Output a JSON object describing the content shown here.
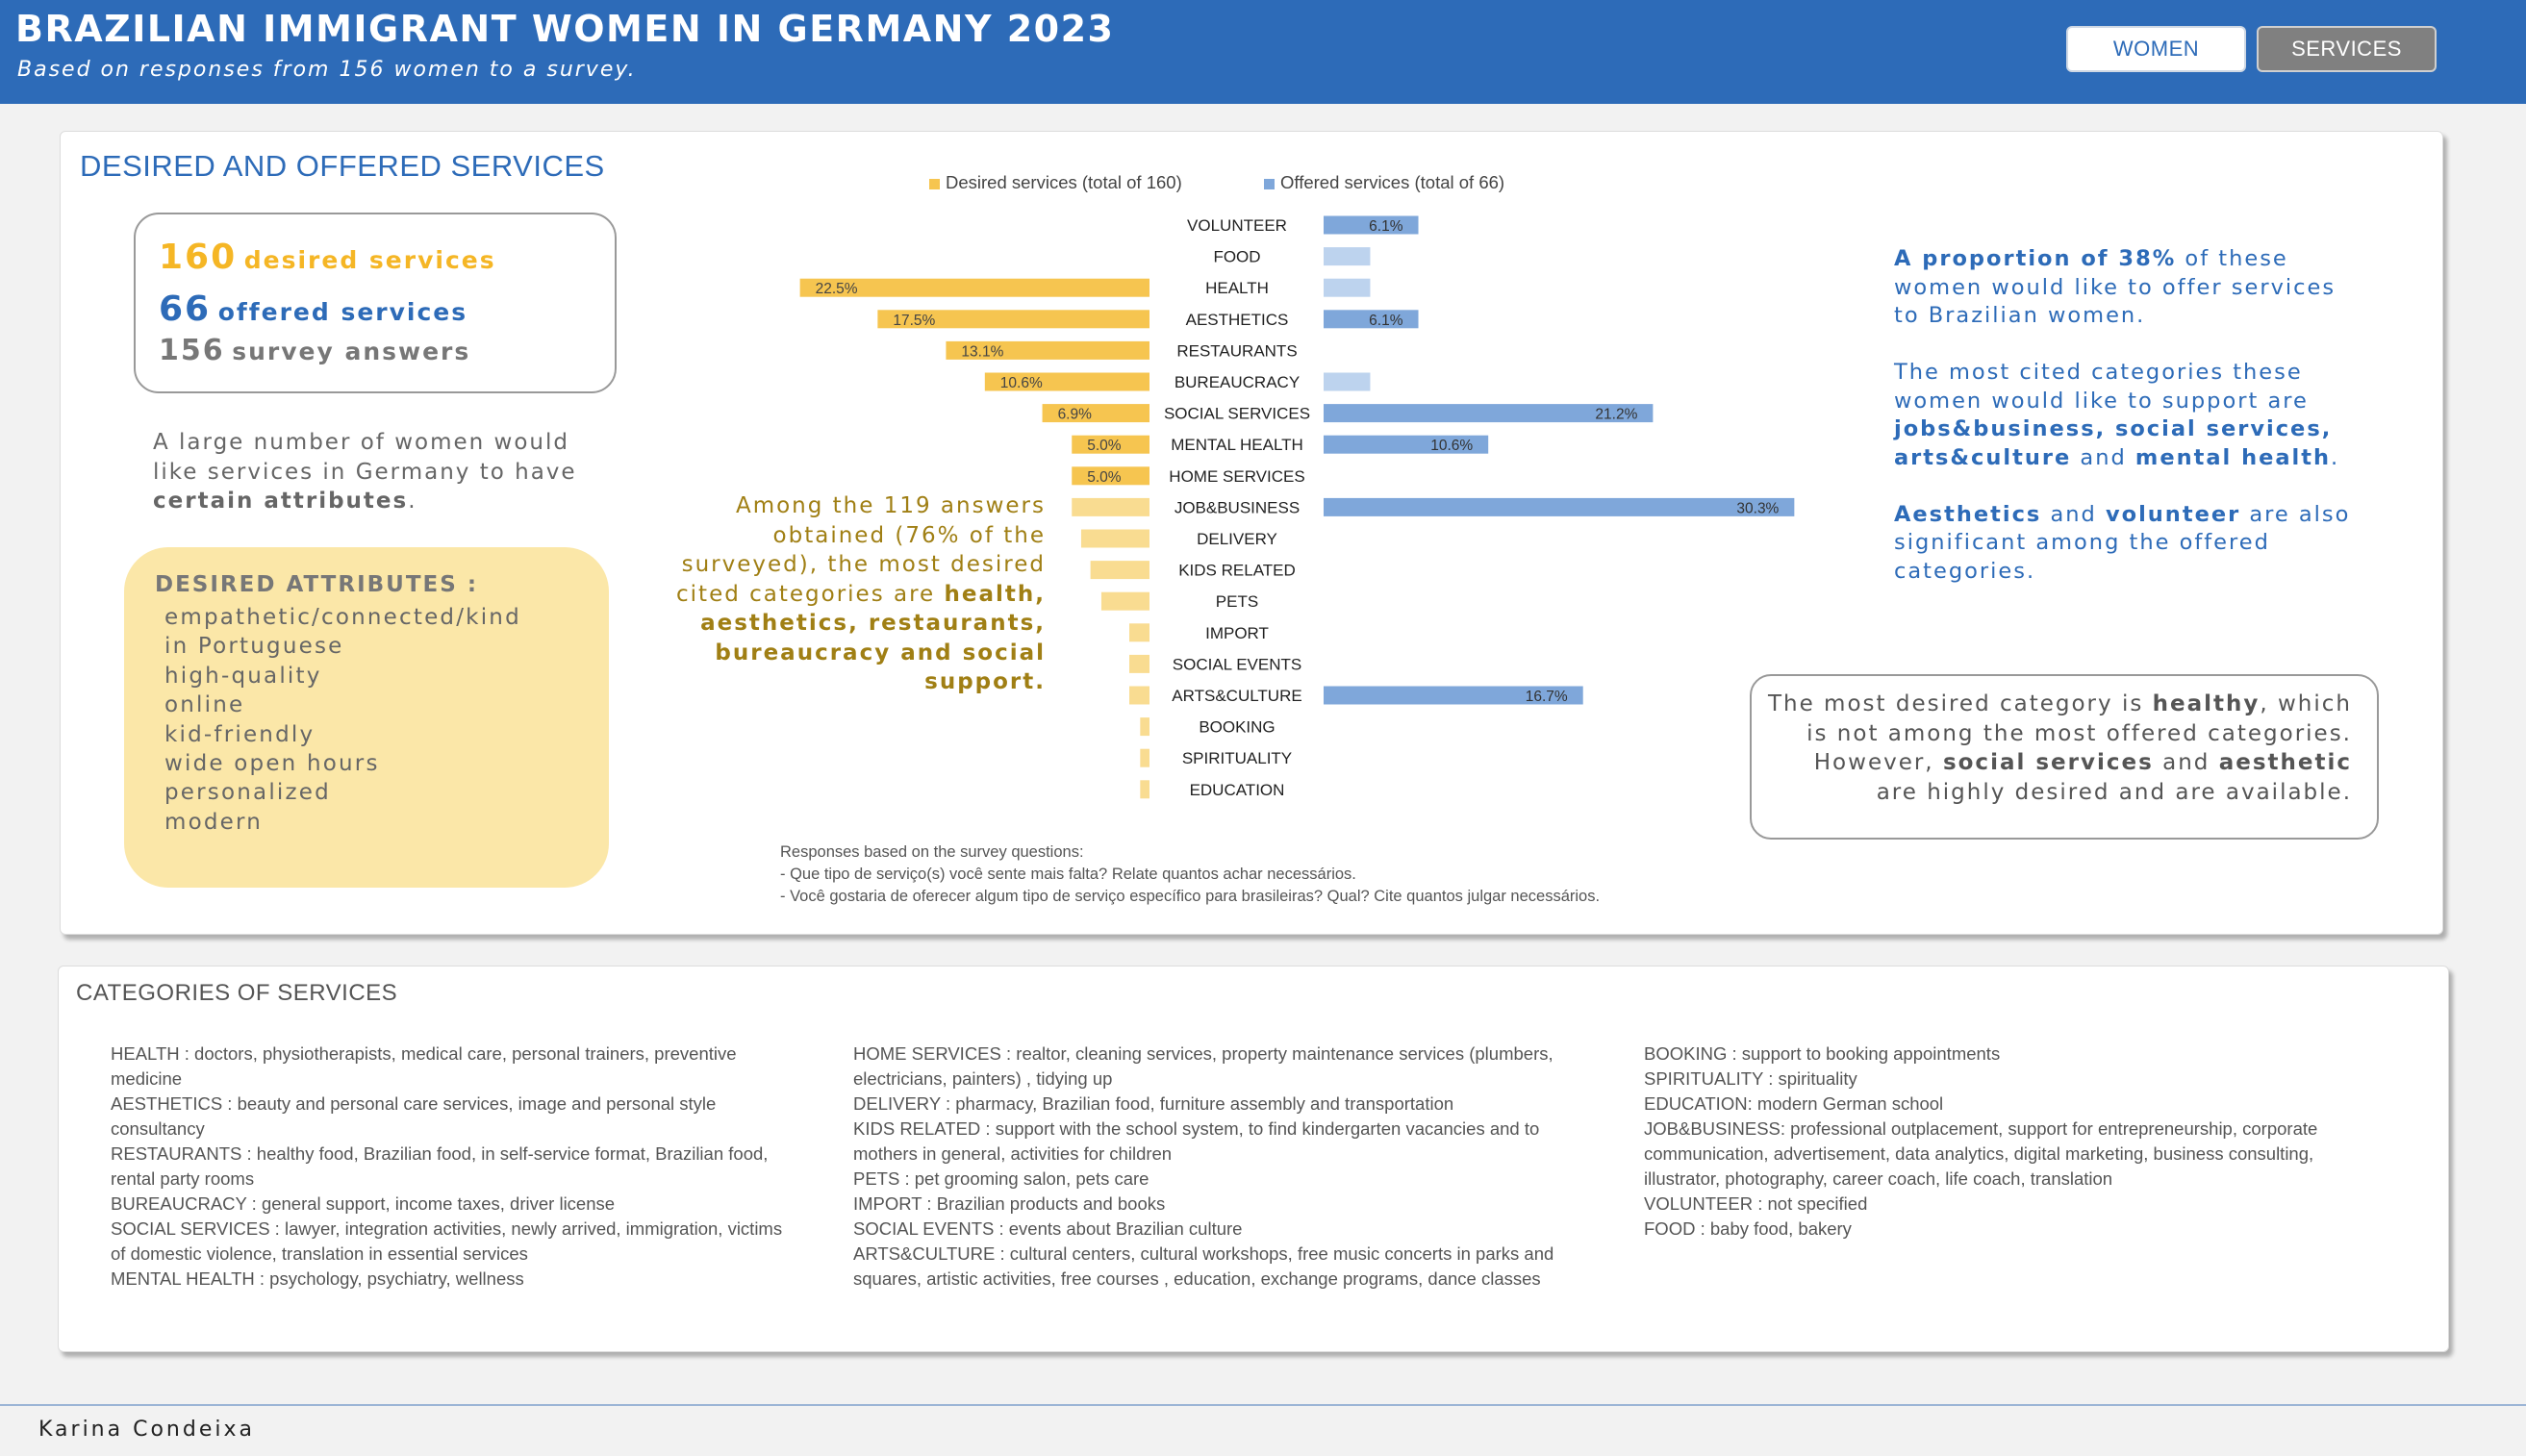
{
  "header": {
    "title": "BRAZILIAN IMMIGRANT WOMEN IN GERMANY 2023",
    "subtitle": "Based on responses from 156 women to a survey.",
    "tabs": [
      {
        "label": "WOMEN",
        "active": false
      },
      {
        "label": "SERVICES",
        "active": true
      }
    ]
  },
  "colors": {
    "header_blue": "#2d6bb8",
    "desired_dark": "#f6c550",
    "desired_light": "#f9dc91",
    "offered_dark": "#7fa7da",
    "offered_light": "#bdd3ee"
  },
  "main": {
    "section_title": "DESIRED AND OFFERED SERVICES",
    "stats": [
      {
        "number": "160",
        "label": "desired services",
        "color": "yellow"
      },
      {
        "number": "66",
        "label": "offered services",
        "color": "blue"
      },
      {
        "number": "156",
        "label": "survey answers",
        "color": "gray"
      }
    ],
    "intro_text": "A large number of women would like services in Germany to have",
    "intro_bold": "certain attributes",
    "intro_end": ".",
    "attributes_title": "DESIRED ATTRIBUTES :",
    "attributes": [
      "empathetic/connected/kind",
      "in Portuguese",
      "high-quality",
      "online",
      "kid-friendly",
      "wide open hours",
      "personalized",
      "modern"
    ],
    "mid_note": {
      "text": "Among the 119 answers obtained (76% of the surveyed), the most desired cited categories are",
      "bold": "health, aesthetics, restaurants, bureaucracy and social support."
    },
    "right_note": {
      "p1_bold": "A proportion of 38%",
      "p1_rest": " of these women would like to offer services to Brazilian women.",
      "p2_text": "The most cited categories these women would like to support are ",
      "p2_bold1": "jobs&business, social services, arts&culture",
      "p2_and": " and ",
      "p2_bold2": "mental health",
      "p2_end": ".",
      "p3_bold1": "Aesthetics",
      "p3_and": " and ",
      "p3_bold2": "volunteer",
      "p3_rest": " are also significant among the offered categories."
    },
    "conclusion": {
      "t1": "The most desired category is ",
      "b1": "healthy",
      "t2": ", which is not among the most offered categories. However, ",
      "b2": "social services",
      "t3": " and ",
      "b3": "aesthetic",
      "t4": " are highly desired and are available."
    },
    "survey_note": [
      "Responses based on the survey questions:",
      "- Que tipo de serviço(s) você sente mais falta? Relate quantos achar necessários.",
      "- Você gostaria de oferecer algum tipo de serviço específico para brasileiras? Qual? Cite quantos julgar necessários."
    ]
  },
  "chart_data": {
    "type": "bar",
    "orientation": "horizontal-butterfly",
    "legend": [
      "Desired services (total of 160)",
      "Offered services (total of 66)"
    ],
    "legend_position": "top",
    "categories": [
      "VOLUNTEER",
      "FOOD",
      "HEALTH",
      "AESTHETICS",
      "RESTAURANTS",
      "BUREAUCRACY",
      "SOCIAL SERVICES",
      "MENTAL HEALTH",
      "HOME SERVICES",
      "JOB&BUSINESS",
      "DELIVERY",
      "KIDS RELATED",
      "PETS",
      "IMPORT",
      "SOCIAL EVENTS",
      "ARTS&CULTURE",
      "BOOKING",
      "SPIRITUALITY",
      "EDUCATION"
    ],
    "series": [
      {
        "name": "Desired services (total of 160)",
        "values": [
          0,
          0,
          22.5,
          17.5,
          13.1,
          10.6,
          6.9,
          5.0,
          5.0,
          5.0,
          4.4,
          3.8,
          3.1,
          1.3,
          1.3,
          1.3,
          0.6,
          0.6,
          0.6
        ],
        "labels": [
          "",
          "",
          "22.5%",
          "17.5%",
          "13.1%",
          "10.6%",
          "6.9%",
          "5.0%",
          "5.0%",
          "",
          "",
          "",
          "",
          "",
          "",
          "",
          "",
          "",
          ""
        ]
      },
      {
        "name": "Offered services (total of 66)",
        "values": [
          6.1,
          3.0,
          3.0,
          6.1,
          0,
          3.0,
          21.2,
          10.6,
          0,
          30.3,
          0,
          0,
          0,
          0,
          0,
          16.7,
          0,
          0,
          0
        ],
        "labels": [
          "6.1%",
          "",
          "",
          "6.1%",
          "",
          "",
          "21.2%",
          "10.6%",
          "",
          "30.3%",
          "",
          "",
          "",
          "",
          "",
          "16.7%",
          "",
          "",
          ""
        ]
      }
    ],
    "unit": "%"
  },
  "categories_section": {
    "title": "CATEGORIES OF SERVICES",
    "columns": [
      [
        "HEALTH : doctors, physiotherapists, medical care, personal trainers, preventive medicine",
        "AESTHETICS : beauty and personal care services, image and personal style consultancy",
        "RESTAURANTS : healthy food, Brazilian food, in self-service format, Brazilian food, rental party rooms",
        "BUREAUCRACY : general support, income taxes, driver license",
        "SOCIAL  SERVICES : lawyer, integration activities,  newly arrived, immigration, victims of domestic violence, translation in essential services",
        "MENTAL  HEALTH : psychology, psychiatry, wellness"
      ],
      [
        "HOME SERVICES : realtor, cleaning services, property maintenance services (plumbers, electricians, painters) , tidying up",
        "DELIVERY : pharmacy, Brazilian food, furniture assembly and transportation",
        "KIDS RELATED  : support with the school system, to find kindergarten vacancies and to mothers in general, activities for children",
        "PETS : pet grooming salon, pets care",
        "IMPORT : Brazilian products and books",
        "SOCIAL EVENTS : events about Brazilian culture",
        "ARTS&CULTURE : cultural centers, cultural workshops, free music  concerts in parks and squares, artistic activities, free courses , education, exchange programs, dance classes"
      ],
      [
        "BOOKING : support to booking appointments",
        "SPIRITUALITY : spirituality",
        "EDUCATION: modern German school",
        "JOB&BUSINESS: professional outplacement, support for entrepreneurship, corporate communication, advertisement, data analytics, digital marketing, business consulting, illustrator, photography, career coach, life coach, translation",
        "VOLUNTEER : not specified",
        "FOOD : baby food, bakery"
      ]
    ]
  },
  "footer": {
    "author": "Karina Condeixa"
  }
}
